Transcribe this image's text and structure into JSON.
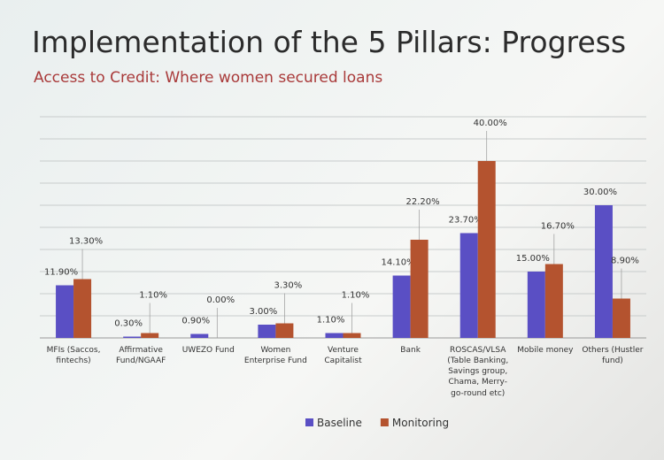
{
  "chart_data": {
    "type": "bar",
    "title": "Implementation of the 5 Pillars: Progress",
    "subtitle": "Access to Credit: Where women secured loans",
    "categories": [
      "MFIs (Saccos, fintechs)",
      "Affirmative Fund/NGAAF",
      "UWEZO Fund",
      "Women Enterprise Fund",
      "Venture Capitalist",
      "Bank",
      "ROSCAS/VLSA (Table Banking, Savings group, Chama, Merry-go-round etc)",
      "Mobile money",
      "Others (Hustler fund)"
    ],
    "series": [
      {
        "name": "Baseline",
        "color": "#5a4fc4",
        "values": [
          11.9,
          0.3,
          0.9,
          3.0,
          1.1,
          14.1,
          23.7,
          15.0,
          30.0
        ],
        "value_labels": [
          "11.90%",
          "0.30%",
          "0.90%",
          "3.00%",
          "1.10%",
          "14.10%",
          "23.70%",
          "15.00%",
          "30.00%"
        ]
      },
      {
        "name": "Monitoring",
        "color": "#b4532f",
        "values": [
          13.3,
          1.1,
          0.0,
          3.3,
          1.1,
          22.2,
          40.0,
          16.7,
          8.9
        ],
        "value_labels": [
          "13.30%",
          "1.10%",
          "0.00%",
          "3.30%",
          "1.10%",
          "22.20%",
          "40.00%",
          "16.70%",
          "8.90%"
        ]
      }
    ],
    "ylim": [
      0,
      50
    ],
    "yticks": [
      0,
      5,
      10,
      15,
      20,
      25,
      30,
      35,
      40,
      45,
      50
    ],
    "grid": true,
    "legend": "bottom"
  }
}
